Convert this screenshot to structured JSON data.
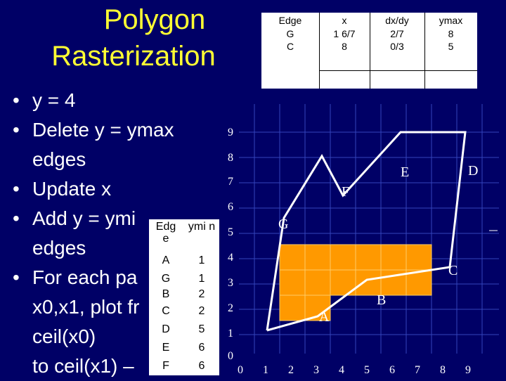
{
  "slide": {
    "title_line1": "Polygon",
    "title_line2": "Rasterization",
    "bullets": [
      {
        "dot": "•",
        "text": "y = 4"
      },
      {
        "dot": "•",
        "text": "Delete y = ymax"
      },
      {
        "dot": "",
        "text": "edges"
      },
      {
        "dot": "•",
        "text": "Update x"
      },
      {
        "dot": "•",
        "text": "Add y = ymi"
      },
      {
        "dot": "",
        "text": "edges"
      },
      {
        "dot": "•",
        "text": "For each pa"
      },
      {
        "dot": "",
        "text": "x0,x1, plot fr"
      },
      {
        "dot": "",
        "text": "ceil(x0)"
      },
      {
        "dot": "",
        "text": "to ceil(x1) –"
      }
    ]
  },
  "active_edge_table": {
    "headers": [
      "Edge",
      "x",
      "dx/dy",
      "ymax"
    ],
    "rows": [
      [
        "G",
        "1 6/7",
        "2/7",
        "8"
      ],
      [
        "C",
        "8",
        "0/3",
        "5"
      ]
    ]
  },
  "edge_table": {
    "headers": [
      "Edg e",
      "ymi n"
    ],
    "rows": [
      [
        "A",
        "1"
      ],
      [
        "G",
        "1"
      ],
      [
        "B",
        "2"
      ],
      [
        "C",
        "2"
      ],
      [
        "D",
        "5"
      ],
      [
        "E",
        "6"
      ],
      [
        "F",
        "6"
      ]
    ]
  },
  "grid": {
    "x_ticks": [
      "0",
      "1",
      "2",
      "3",
      "4",
      "5",
      "6",
      "7",
      "8",
      "9"
    ],
    "y_ticks": [
      "0",
      "1",
      "2",
      "3",
      "4",
      "5",
      "6",
      "7",
      "8",
      "9"
    ],
    "vertex_labels": [
      "A",
      "B",
      "C",
      "D",
      "E",
      "F",
      "G"
    ],
    "fill_color": "#ff9900",
    "line_color": "#ffffff"
  }
}
